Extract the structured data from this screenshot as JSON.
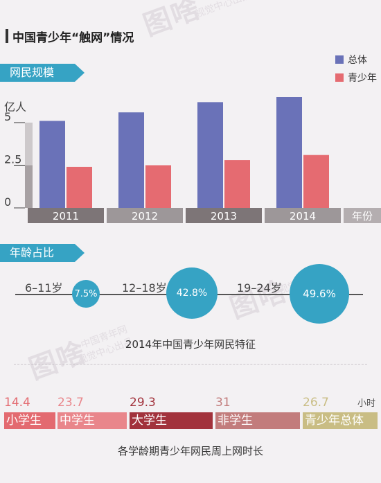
{
  "watermark": {
    "logo": "图啥",
    "line1": "中国青年网",
    "line2": "视觉中心出品"
  },
  "title": "中国青少年“触网”情况",
  "legend": [
    {
      "label": "总体",
      "color": "#6a72b8"
    },
    {
      "label": "青少年",
      "color": "#e56b71"
    }
  ],
  "section1": {
    "tab": "网民规模",
    "unit": "亿人",
    "xunit": "年份"
  },
  "chart_data": {
    "type": "bar",
    "categories": [
      "2011",
      "2012",
      "2013",
      "2014"
    ],
    "series": [
      {
        "name": "总体",
        "values": [
          5.1,
          5.6,
          6.2,
          6.5
        ]
      },
      {
        "name": "青少年",
        "values": [
          2.4,
          2.5,
          2.8,
          3.1
        ]
      }
    ],
    "yticks": [
      "0",
      "2.5",
      "5"
    ],
    "ylim": [
      0,
      6.5
    ],
    "ylabel": "亿人",
    "xlabel": "年份"
  },
  "section2": {
    "tab": "年龄占比",
    "caption": "2014年中国青少年网民特征",
    "ages": [
      {
        "label": "6–11岁",
        "value": "7.5%"
      },
      {
        "label": "12–18岁",
        "value": "42.8%"
      },
      {
        "label": "19–24岁",
        "value": "49.6%"
      }
    ]
  },
  "section3": {
    "unit": "小时",
    "caption": "各学龄期青少年网民周上网时长",
    "groups": [
      {
        "label": "小学生",
        "value": "14.4",
        "color": "#e36a70"
      },
      {
        "label": "中学生",
        "value": "23.7",
        "color": "#e9868b"
      },
      {
        "label": "大学生",
        "value": "29.3",
        "color": "#a2323c"
      },
      {
        "label": "非学生",
        "value": "31",
        "color": "#c27c7c"
      },
      {
        "label": "青少年总体",
        "value": "26.7",
        "color": "#c9bd84"
      }
    ]
  }
}
